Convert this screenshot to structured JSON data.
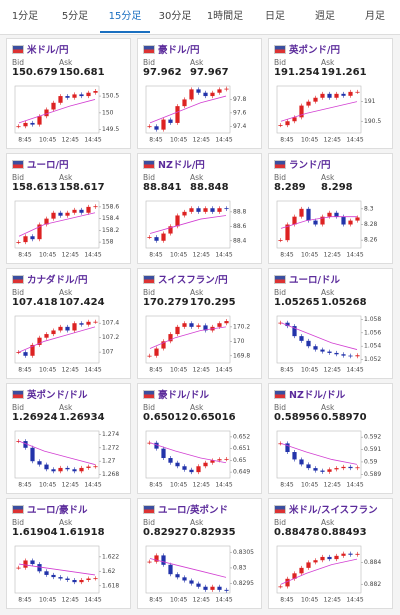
{
  "tabs": [
    "1分足",
    "5分足",
    "15分足",
    "30分足",
    "1時間足",
    "日足",
    "週足",
    "月足"
  ],
  "active_tab": 2,
  "bid_label": "Bid",
  "ask_label": "Ask",
  "x_axis_labels": [
    "8:45",
    "10:45",
    "12:45",
    "14:45"
  ],
  "panels": [
    {
      "name": "米ドル/円",
      "bid": "150.679",
      "ask": "150.681",
      "ylim": [
        149.4,
        150.8
      ],
      "yticks": [
        149.5,
        150,
        150.5
      ],
      "closes": [
        149.6,
        149.7,
        149.65,
        149.9,
        150.1,
        150.3,
        150.5,
        150.45,
        150.55,
        150.5,
        150.6,
        150.65
      ],
      "ma": [
        149.7,
        149.95,
        150.2,
        150.4
      ]
    },
    {
      "name": "豪ドル/円",
      "bid": "97.962",
      "ask": "97.967",
      "ylim": [
        97.3,
        98.0
      ],
      "yticks": [
        97.4,
        97.6,
        97.8
      ],
      "closes": [
        97.4,
        97.35,
        97.5,
        97.45,
        97.7,
        97.8,
        97.95,
        97.9,
        97.85,
        97.9,
        97.95,
        97.96
      ],
      "ma": [
        97.45,
        97.6,
        97.75,
        97.85
      ]
    },
    {
      "name": "英ポンド/円",
      "bid": "191.254",
      "ask": "191.261",
      "ylim": [
        190.2,
        191.4
      ],
      "yticks": [
        190.5,
        191
      ],
      "closes": [
        190.4,
        190.5,
        190.6,
        190.9,
        191.0,
        191.1,
        191.2,
        191.1,
        191.2,
        191.15,
        191.25,
        191.25
      ],
      "ma": [
        190.5,
        190.7,
        190.85,
        191.0
      ]
    },
    {
      "name": "ユーロ/円",
      "bid": "158.613",
      "ask": "158.617",
      "ylim": [
        157.9,
        158.7
      ],
      "yticks": [
        158,
        158.2,
        158.4,
        158.6
      ],
      "closes": [
        158.0,
        158.1,
        158.05,
        158.3,
        158.4,
        158.5,
        158.45,
        158.5,
        158.55,
        158.5,
        158.6,
        158.61
      ],
      "ma": [
        158.1,
        158.3,
        158.4,
        158.5
      ]
    },
    {
      "name": "NZドル/円",
      "bid": "88.841",
      "ask": "88.848",
      "ylim": [
        88.3,
        88.95
      ],
      "yticks": [
        88.4,
        88.6,
        88.8
      ],
      "closes": [
        88.45,
        88.4,
        88.5,
        88.6,
        88.75,
        88.8,
        88.85,
        88.8,
        88.85,
        88.8,
        88.85,
        88.84
      ],
      "ma": [
        88.5,
        88.6,
        88.7,
        88.75
      ]
    },
    {
      "name": "ランド/円",
      "bid": "8.289",
      "ask": "8.298",
      "ylim": [
        8.25,
        8.31
      ],
      "yticks": [
        8.26,
        8.28,
        8.3
      ],
      "closes": [
        8.26,
        8.28,
        8.29,
        8.3,
        8.285,
        8.28,
        8.29,
        8.295,
        8.29,
        8.28,
        8.285,
        8.289
      ],
      "ma": [
        8.275,
        8.285,
        8.29,
        8.29
      ]
    },
    {
      "name": "カナダドル/円",
      "bid": "107.418",
      "ask": "107.424",
      "ylim": [
        106.85,
        107.5
      ],
      "yticks": [
        107,
        107.2,
        107.4
      ],
      "closes": [
        107.0,
        106.95,
        107.1,
        107.2,
        107.25,
        107.3,
        107.35,
        107.3,
        107.4,
        107.38,
        107.42,
        107.42
      ],
      "ma": [
        107.0,
        107.15,
        107.25,
        107.35
      ]
    },
    {
      "name": "スイスフラン/円",
      "bid": "170.279",
      "ask": "170.295",
      "ylim": [
        169.7,
        170.35
      ],
      "yticks": [
        169.8,
        170,
        170.2
      ],
      "closes": [
        169.8,
        169.9,
        170.0,
        170.1,
        170.2,
        170.25,
        170.2,
        170.22,
        170.15,
        170.2,
        170.25,
        170.28
      ],
      "ma": [
        169.9,
        170.05,
        170.15,
        170.2
      ]
    },
    {
      "name": "ユーロ/ドル",
      "bid": "1.05265",
      "ask": "1.05268",
      "ylim": [
        1.0515,
        1.0585
      ],
      "yticks": [
        1.052,
        1.054,
        1.056,
        1.058
      ],
      "closes": [
        1.0575,
        1.057,
        1.0555,
        1.0548,
        1.054,
        1.0535,
        1.0532,
        1.053,
        1.0528,
        1.0526,
        1.0525,
        1.05265
      ],
      "ma": [
        1.0575,
        1.056,
        1.0545,
        1.0535
      ]
    },
    {
      "name": "英ポンド/ドル",
      "bid": "1.26924",
      "ask": "1.26934",
      "ylim": [
        1.2675,
        1.2745
      ],
      "yticks": [
        1.268,
        1.27,
        1.272,
        1.274
      ],
      "closes": [
        1.273,
        1.272,
        1.27,
        1.2695,
        1.2688,
        1.2685,
        1.269,
        1.2688,
        1.2685,
        1.269,
        1.2692,
        1.26924
      ],
      "ma": [
        1.273,
        1.2715,
        1.2705,
        1.2695
      ]
    },
    {
      "name": "豪ドル/ドル",
      "bid": "0.65012",
      "ask": "0.65016",
      "ylim": [
        0.6485,
        0.6525
      ],
      "yticks": [
        0.649,
        0.65,
        0.651,
        0.652
      ],
      "closes": [
        0.6515,
        0.651,
        0.6502,
        0.6498,
        0.6495,
        0.6492,
        0.649,
        0.6495,
        0.6498,
        0.65,
        0.6501,
        0.65012
      ],
      "ma": [
        0.6515,
        0.6508,
        0.6502,
        0.6498
      ]
    },
    {
      "name": "NZドル/ドル",
      "bid": "0.58956",
      "ask": "0.58970",
      "ylim": [
        0.5887,
        0.5925
      ],
      "yticks": [
        0.589,
        0.59,
        0.591,
        0.592
      ],
      "closes": [
        0.5915,
        0.5908,
        0.5902,
        0.5898,
        0.5895,
        0.5893,
        0.5892,
        0.5894,
        0.5895,
        0.5896,
        0.5895,
        0.58956
      ],
      "ma": [
        0.5915,
        0.5908,
        0.5902,
        0.5898
      ]
    },
    {
      "name": "ユーロ/豪ドル",
      "bid": "1.61904",
      "ask": "1.61918",
      "ylim": [
        1.617,
        1.6235
      ],
      "yticks": [
        1.618,
        1.62,
        1.622
      ],
      "closes": [
        1.6205,
        1.6215,
        1.621,
        1.62,
        1.6195,
        1.6192,
        1.619,
        1.6188,
        1.6185,
        1.6188,
        1.619,
        1.61904
      ],
      "ma": [
        1.621,
        1.6205,
        1.62,
        1.6195
      ]
    },
    {
      "name": "ユーロ/英ポンド",
      "bid": "0.82927",
      "ask": "0.82935",
      "ylim": [
        0.8292,
        0.8307
      ],
      "yticks": [
        0.8295,
        0.83,
        0.8305
      ],
      "closes": [
        0.8302,
        0.8304,
        0.8301,
        0.8298,
        0.8297,
        0.8296,
        0.8295,
        0.8294,
        0.8293,
        0.8294,
        0.8293,
        0.82927
      ],
      "ma": [
        0.8303,
        0.8301,
        0.8299,
        0.8297
      ]
    },
    {
      "name": "米ドル/スイスフラン",
      "bid": "0.88478",
      "ask": "0.88493",
      "ylim": [
        0.8812,
        0.8855
      ],
      "yticks": [
        0.882,
        0.884
      ],
      "closes": [
        0.8818,
        0.8825,
        0.883,
        0.8835,
        0.884,
        0.8842,
        0.8845,
        0.8843,
        0.8846,
        0.8848,
        0.8847,
        0.88478
      ],
      "ma": [
        0.882,
        0.883,
        0.8838,
        0.8843
      ]
    }
  ]
}
